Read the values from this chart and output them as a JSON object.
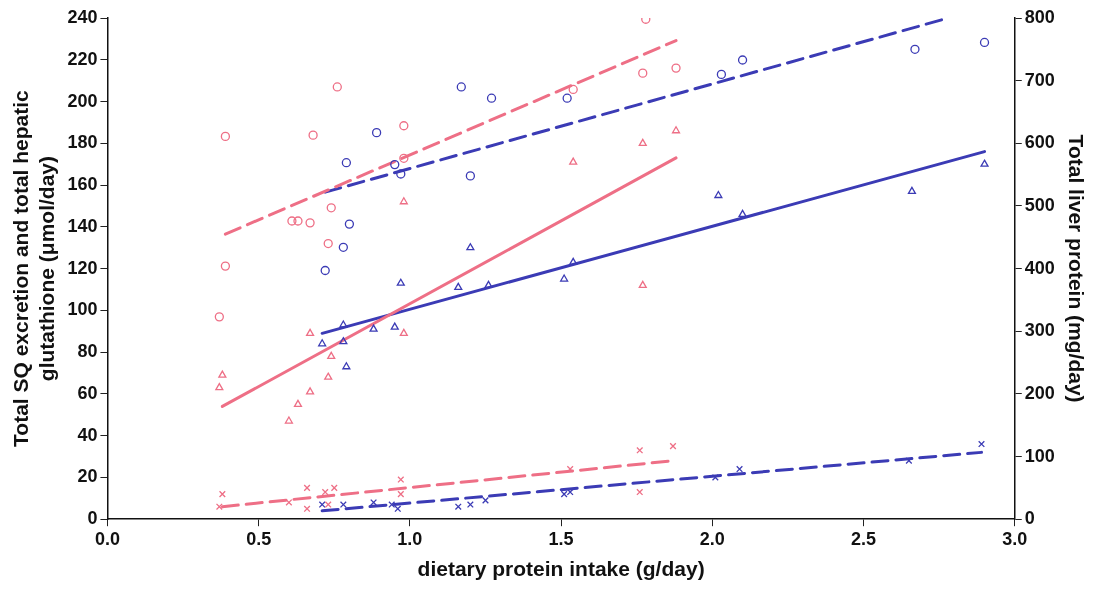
{
  "chart_data": {
    "type": "scatter",
    "xlabel": "dietary protein intake (g/day)",
    "ylabel": "Total SQ excretion and total hepatic glutathione (μmol/day)",
    "y2label": "Total liver protein (mg/day)",
    "xlim": [
      0,
      3
    ],
    "xticks": [
      {
        "value": 0,
        "label": "0.0"
      },
      {
        "value": 0.5,
        "label": "0.5"
      },
      {
        "value": 1,
        "label": "1.0"
      },
      {
        "value": 1.5,
        "label": "1.5"
      },
      {
        "value": 2,
        "label": "2.0"
      },
      {
        "value": 2.5,
        "label": "2.5"
      },
      {
        "value": 3,
        "label": "3.0"
      }
    ],
    "ylim": [
      0,
      240
    ],
    "yticks": [
      0,
      20,
      40,
      60,
      80,
      100,
      120,
      140,
      160,
      180,
      200,
      220,
      240
    ],
    "y2lim": [
      0,
      800
    ],
    "y2ticks": [
      0,
      100,
      200,
      300,
      400,
      500,
      600,
      700,
      800
    ],
    "grid": false,
    "legend": false,
    "series": [
      {
        "marker": "circle",
        "axis": "y2",
        "color": "#ee6f86",
        "x": [
          0.37,
          0.39,
          0.39,
          0.61,
          0.63,
          0.67,
          0.68,
          0.73,
          0.74,
          0.76,
          0.98,
          0.98,
          1.54,
          1.77,
          1.78,
          1.88
        ],
        "values": [
          323,
          404,
          611,
          476,
          476,
          473,
          613,
          440,
          497,
          690,
          628,
          576,
          686,
          712,
          798,
          720
        ]
      },
      {
        "marker": "circle",
        "axis": "y2",
        "color": "#3b3bb5",
        "x": [
          0.72,
          0.78,
          0.79,
          0.8,
          0.89,
          0.95,
          0.97,
          1.17,
          1.2,
          1.27,
          1.52,
          2.03,
          2.1,
          2.67,
          2.9
        ],
        "values": [
          397,
          434,
          569,
          471,
          617,
          566,
          551,
          690,
          548,
          672,
          672,
          710,
          733,
          750,
          761
        ]
      },
      {
        "type": "line",
        "line_style": "dashed",
        "axis": "y2",
        "color": "#ee6f86",
        "x": [
          0.39,
          1.88
        ],
        "values": [
          455,
          764
        ]
      },
      {
        "type": "line",
        "line_style": "dashed",
        "axis": "y2",
        "color": "#3b3bb5",
        "x": [
          0.72,
          2.78
        ],
        "values": [
          522,
          800
        ]
      },
      {
        "marker": "triangle",
        "color": "#ee6f86",
        "x": [
          0.37,
          0.38,
          0.6,
          0.63,
          0.67,
          0.67,
          0.73,
          0.74,
          0.98,
          0.98,
          1.54,
          1.77,
          1.77,
          1.88
        ],
        "values": [
          63,
          69,
          47,
          55,
          61,
          89,
          68,
          78,
          89,
          152,
          171,
          112,
          180,
          186
        ]
      },
      {
        "marker": "triangle",
        "color": "#3b3bb5",
        "x": [
          0.71,
          0.78,
          0.78,
          0.79,
          0.88,
          0.95,
          0.97,
          1.16,
          1.2,
          1.26,
          1.51,
          1.54,
          2.02,
          2.1,
          2.66,
          2.9
        ],
        "values": [
          84,
          85,
          93,
          73,
          91,
          92,
          113,
          111,
          130,
          112,
          115,
          123,
          155,
          146,
          157,
          170
        ]
      },
      {
        "type": "line",
        "line_style": "solid",
        "color": "#ee6f86",
        "x": [
          0.38,
          1.88
        ],
        "values": [
          54,
          173
        ]
      },
      {
        "type": "line",
        "line_style": "solid",
        "color": "#3b3bb5",
        "x": [
          0.71,
          2.9
        ],
        "values": [
          89,
          176
        ]
      },
      {
        "marker": "cross",
        "color": "#ee6f86",
        "x": [
          0.37,
          0.38,
          0.6,
          0.66,
          0.66,
          0.72,
          0.73,
          0.75,
          0.97,
          0.97,
          1.53,
          1.76,
          1.76,
          1.87
        ],
        "values": [
          6,
          12,
          8,
          15,
          5,
          13,
          7,
          15,
          19,
          12,
          24,
          13,
          33,
          35
        ]
      },
      {
        "marker": "cross",
        "color": "#3b3bb5",
        "x": [
          0.71,
          0.78,
          0.88,
          0.94,
          0.96,
          1.16,
          1.2,
          1.25,
          1.51,
          1.53,
          2.01,
          2.09,
          2.65,
          2.89
        ],
        "values": [
          7,
          7,
          8,
          7,
          5,
          6,
          7,
          9,
          12,
          13,
          20,
          24,
          28,
          36
        ]
      },
      {
        "type": "line",
        "line_style": "dashed",
        "color": "#ee6f86",
        "x": [
          0.38,
          1.87
        ],
        "values": [
          6,
          28
        ]
      },
      {
        "type": "line",
        "line_style": "dashed",
        "color": "#3b3bb5",
        "x": [
          0.71,
          2.89
        ],
        "values": [
          4,
          32
        ]
      }
    ]
  }
}
